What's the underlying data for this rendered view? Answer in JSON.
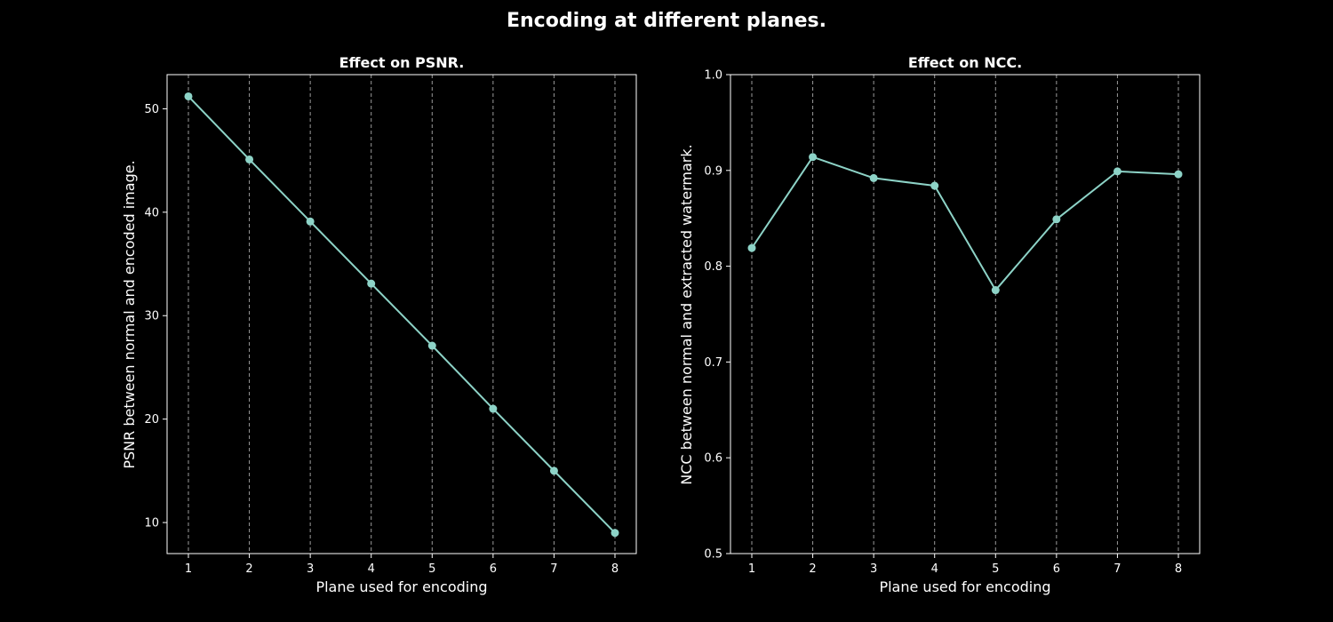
{
  "figure": {
    "title": "Encoding at different planes."
  },
  "chart_data": [
    {
      "type": "line",
      "title": "Effect on PSNR.",
      "xlabel": "Plane used for encoding",
      "ylabel": "PSNR between normal and encoded image.",
      "x": [
        1,
        2,
        3,
        4,
        5,
        6,
        7,
        8
      ],
      "series": [
        {
          "values": [
            51.2,
            45.1,
            39.1,
            33.1,
            27.1,
            21.0,
            15.0,
            9.0
          ],
          "color": "#8dd3c7",
          "marker": "circle"
        }
      ],
      "xlim": [
        0.65,
        8.35
      ],
      "ylim": [
        7.0,
        53.3
      ],
      "xticks": [
        1,
        2,
        3,
        4,
        5,
        6,
        7,
        8
      ],
      "yticks": [
        10,
        20,
        30,
        40,
        50
      ],
      "ytick_labels": [
        "10",
        "20",
        "30",
        "40",
        "50"
      ],
      "grid": "vertical dashed"
    },
    {
      "type": "line",
      "title": "Effect on NCC.",
      "xlabel": "Plane used for encoding",
      "ylabel": "NCC between normal and extracted watermark.",
      "x": [
        1,
        2,
        3,
        4,
        5,
        6,
        7,
        8
      ],
      "series": [
        {
          "values": [
            0.819,
            0.914,
            0.892,
            0.884,
            0.775,
            0.849,
            0.899,
            0.896
          ],
          "color": "#8dd3c7",
          "marker": "circle"
        }
      ],
      "xlim": [
        0.65,
        8.35
      ],
      "ylim": [
        0.5,
        1.0
      ],
      "xticks": [
        1,
        2,
        3,
        4,
        5,
        6,
        7,
        8
      ],
      "yticks": [
        0.5,
        0.6,
        0.7,
        0.8,
        0.9,
        1.0
      ],
      "ytick_labels": [
        "0.5",
        "0.6",
        "0.7",
        "0.8",
        "0.9",
        "1.0"
      ],
      "grid": "vertical dashed"
    }
  ]
}
